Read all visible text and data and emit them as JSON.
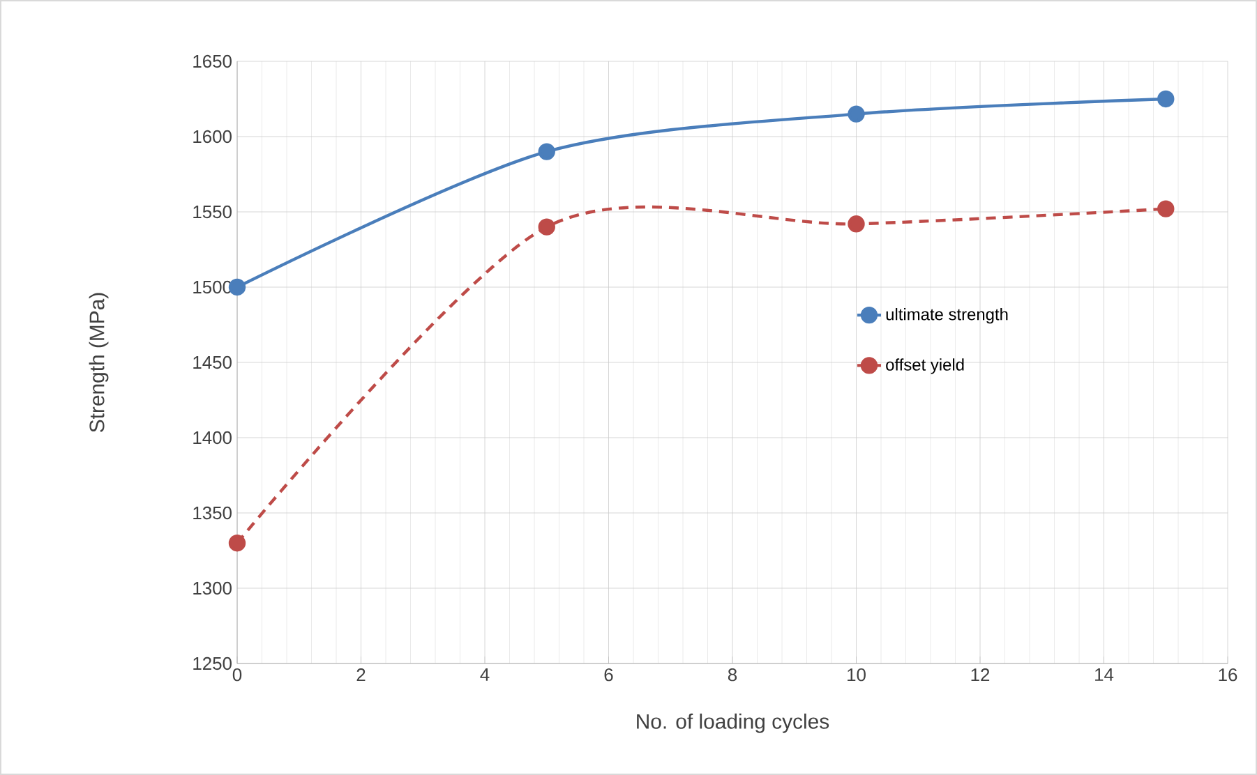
{
  "chart_data": {
    "type": "line",
    "xlabel": "No. of loading cycles",
    "ylabel": "Strength (MPa)",
    "x": [
      0,
      5,
      10,
      15
    ],
    "series": [
      {
        "name": "ultimate strength",
        "color": "#4a7ebb",
        "values": [
          1500,
          1590,
          1615,
          1625
        ],
        "line_style": "solid"
      },
      {
        "name": "offset yield",
        "color": "#be4b48",
        "values": [
          1330,
          1540,
          1542,
          1552
        ],
        "line_style": "dashed"
      }
    ],
    "xlim": [
      0,
      16
    ],
    "xticks": [
      0,
      2,
      4,
      6,
      8,
      10,
      12,
      14,
      16
    ],
    "ylim": [
      1250,
      1650
    ],
    "yticks": [
      1250,
      1300,
      1350,
      1400,
      1450,
      1500,
      1550,
      1600,
      1650
    ],
    "grid": true,
    "legend": "right",
    "marker": "circle"
  }
}
